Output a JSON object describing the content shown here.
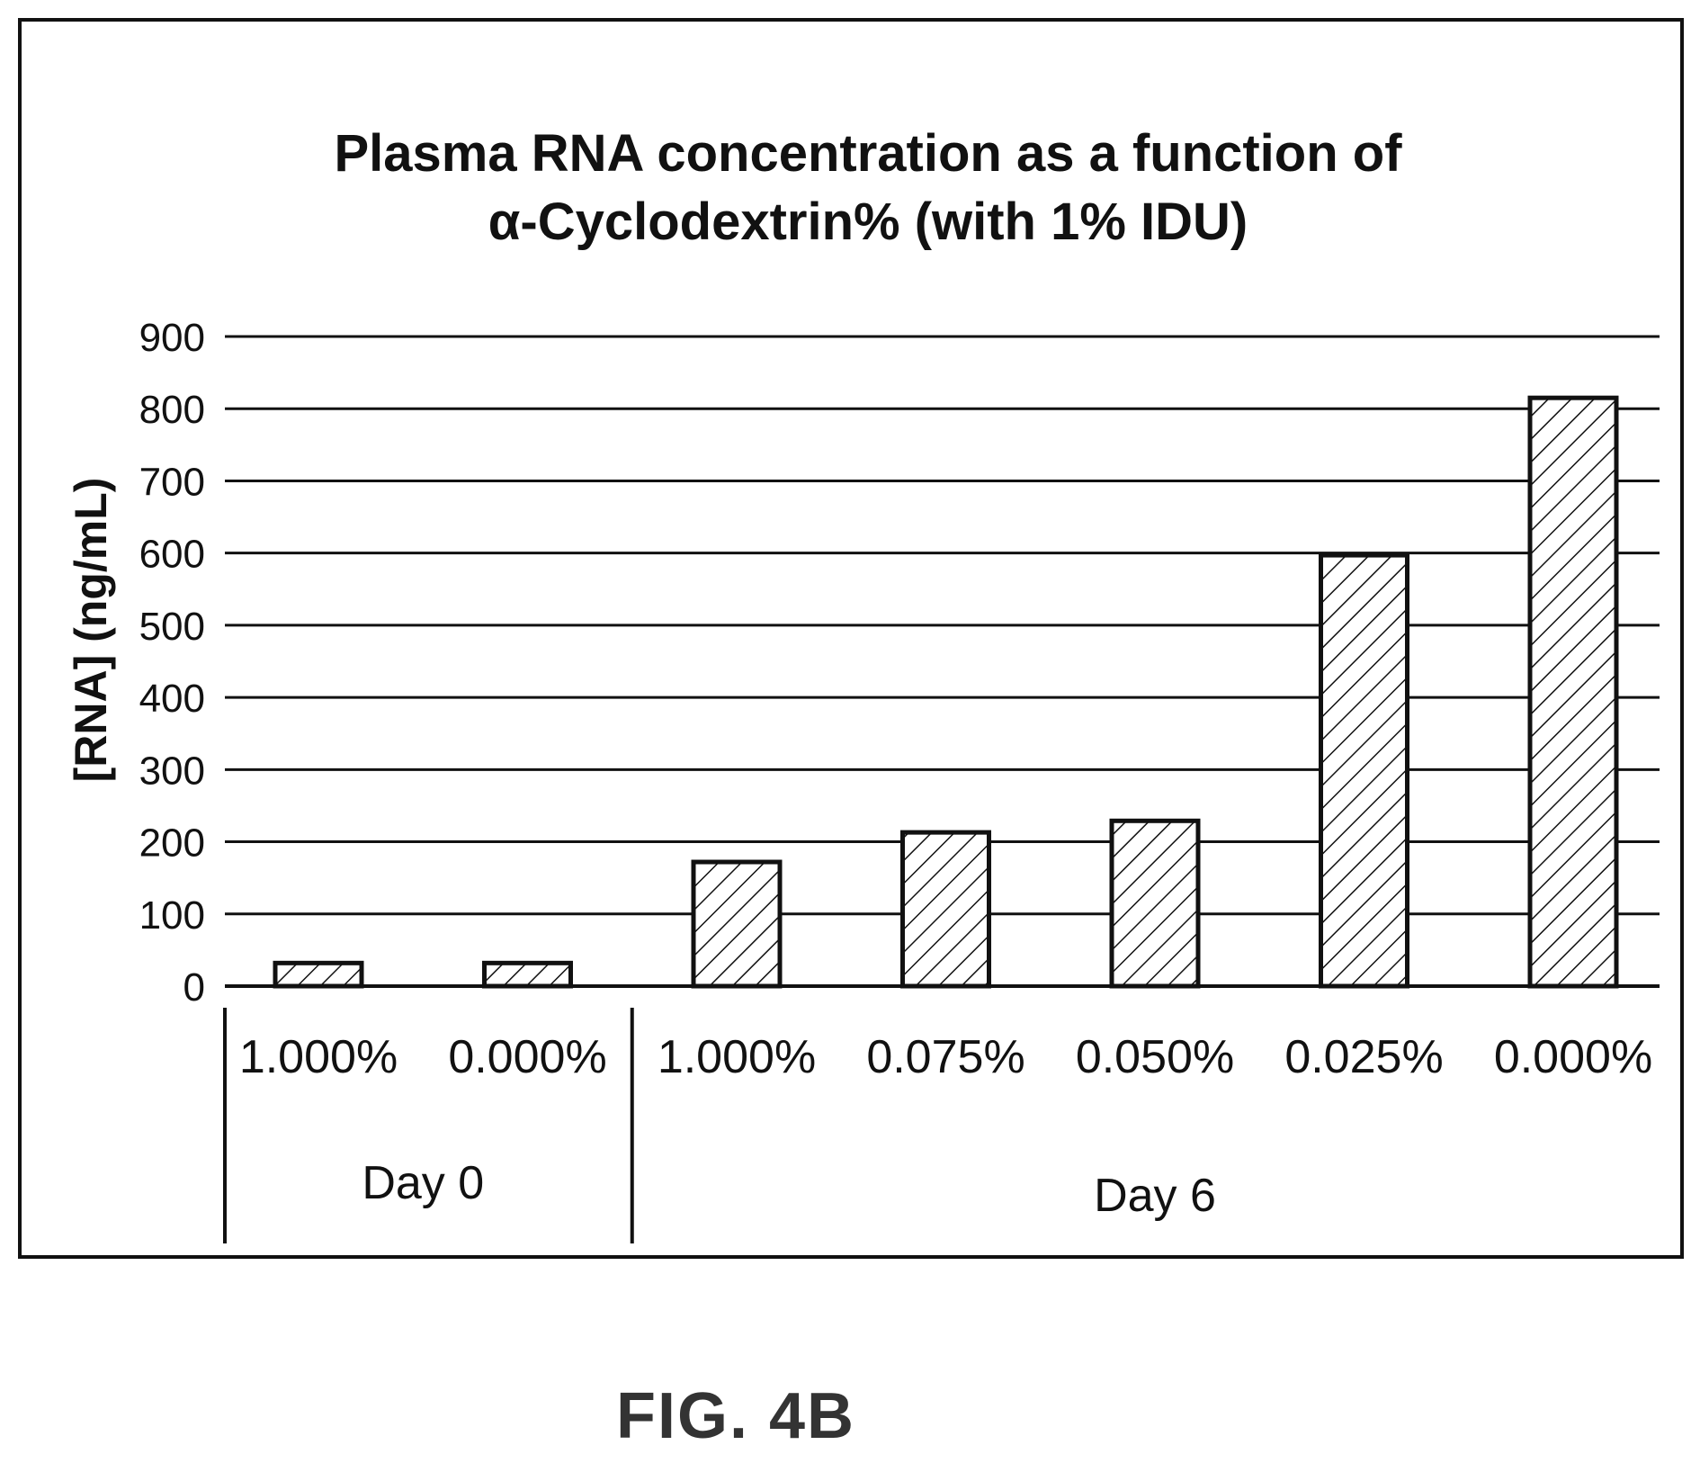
{
  "chart_data": {
    "type": "bar",
    "title_line1": "Plasma RNA concentration as a function of",
    "title_line2": "α-Cyclodextrin% (with 1% IDU)",
    "ylabel": "[RNA] (ng/mL)",
    "ylim": [
      0,
      900
    ],
    "yticks": [
      0,
      100,
      200,
      300,
      400,
      500,
      600,
      700,
      800,
      900
    ],
    "grid": true,
    "categories": [
      "1.000%",
      "0.000%",
      "1.000%",
      "0.075%",
      "0.050%",
      "0.025%",
      "0.000%"
    ],
    "values": [
      32,
      32,
      172,
      213,
      229,
      597,
      815
    ],
    "groups": [
      {
        "label": "Day 0",
        "count": 2
      },
      {
        "label": "Day 6",
        "count": 5
      }
    ],
    "bar_fill": "hatched diagonal",
    "bar_color": "#111111"
  },
  "figure_label": "FIG. 4B"
}
